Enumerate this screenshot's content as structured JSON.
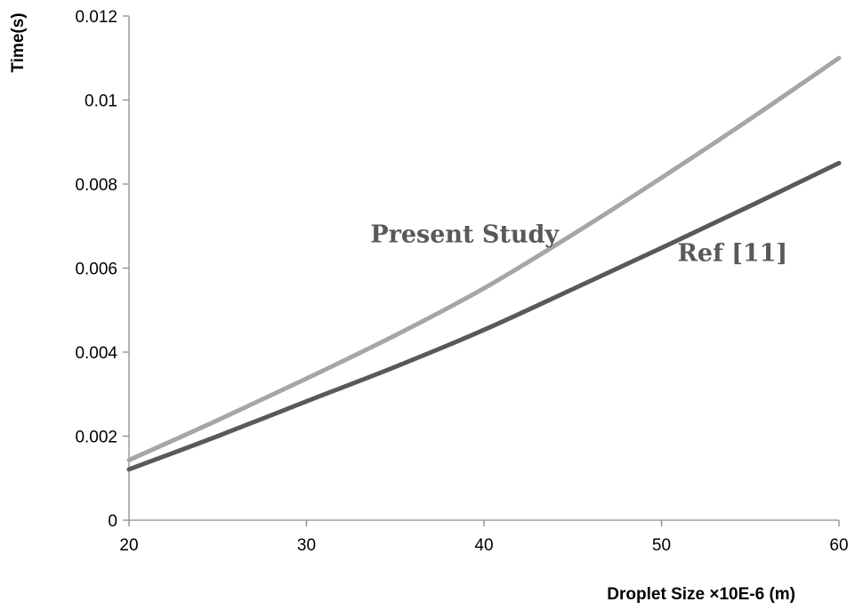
{
  "chart_data": {
    "type": "line",
    "title": "",
    "xlabel": "Droplet Size ×10E-6 (m)",
    "ylabel": "Time(s)",
    "xlim": [
      20,
      60
    ],
    "ylim": [
      0,
      0.012
    ],
    "x_ticks": [
      "20",
      "30",
      "40",
      "50",
      "60"
    ],
    "x_tick_values": [
      20,
      30,
      40,
      50,
      60
    ],
    "y_ticks": [
      "0",
      "0.002",
      "0.004",
      "0.006",
      "0.008",
      "0.01",
      "0.012"
    ],
    "y_tick_values": [
      0,
      0.002,
      0.004,
      0.006,
      0.008,
      0.01,
      0.012
    ],
    "grid": false,
    "legend": "none",
    "series": [
      {
        "name": "Present Study",
        "color": "#a6a6a6",
        "x": [
          20,
          25,
          30,
          35,
          40,
          45,
          50,
          55,
          60
        ],
        "values": [
          0.00143,
          0.00238,
          0.00337,
          0.0044,
          0.00552,
          0.0068,
          0.00815,
          0.00955,
          0.011
        ]
      },
      {
        "name": "Ref [11]",
        "color": "#595959",
        "x": [
          20,
          25,
          30,
          35,
          40,
          45,
          50,
          55,
          60
        ],
        "values": [
          0.00121,
          0.002,
          0.00283,
          0.00365,
          0.00453,
          0.0055,
          0.00648,
          0.00748,
          0.0085
        ]
      }
    ],
    "annotations": [
      {
        "text": "Present Study",
        "x": 33.6,
        "y": 0.00661,
        "color": "#595959"
      },
      {
        "text": "Ref [11]",
        "x": 50.9,
        "y": 0.00617,
        "color": "#595959"
      }
    ]
  }
}
